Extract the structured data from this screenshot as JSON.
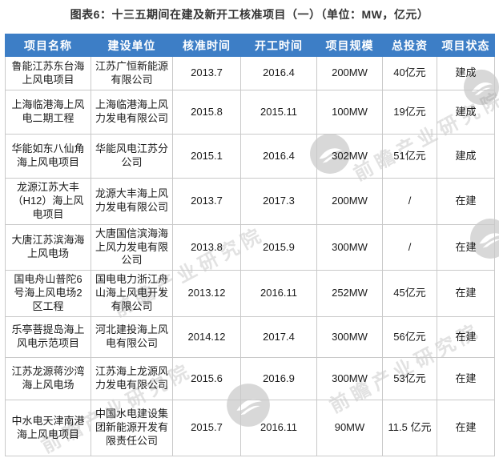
{
  "title": "图表6：十三五期间在建及新开工核准项目（一）（单位：MW，亿元）",
  "watermark": {
    "text": "前瞻产业研究院",
    "logo": "qianzhan-bird-logo"
  },
  "colors": {
    "header_bg": "#3d7ec6",
    "header_text": "#ffffff",
    "border": "#c9c9c9",
    "title_text": "#333333",
    "watermark_text": "#d9d9d9"
  },
  "chart_data": {
    "type": "table",
    "title": "图表6：十三五期间在建及新开工核准项目（一）（单位：MW，亿元）",
    "columns": [
      "项目名称",
      "建设单位",
      "核准时间",
      "开工时间",
      "项目规模",
      "总投资",
      "项目状态"
    ],
    "rows": [
      [
        "鲁能江苏东台海上风电项目",
        "江苏广恒新能源有限公司",
        "2013.7",
        "2016.4",
        "200MW",
        "40亿元",
        "建成"
      ],
      [
        "上海临港海上风电二期工程",
        "上海临港海上风力发电有限公司",
        "2015.8",
        "2015.11",
        "100MW",
        "19亿元",
        "建成"
      ],
      [
        "华能如东八仙角海上风电项目",
        "华能风电江苏分公司",
        "2015.1",
        "2016.4",
        "302MW",
        "51亿元",
        "建成"
      ],
      [
        "龙源江苏大丰（H12）海上风电项目",
        "龙源大丰海上风力发电有限公司",
        "2013.7",
        "2017.3",
        "200MW",
        "/",
        "在建"
      ],
      [
        "大唐江苏滨海海上风电场",
        "大唐国信滨海海上风力发电有限公司",
        "2013.8",
        "2015.9",
        "300MW",
        "/",
        "在建"
      ],
      [
        "国电舟山普陀6号海上风电场2区工程",
        "国电电力浙江舟山海上风电开发有限公司",
        "2013.12",
        "2016.11",
        "252MW",
        "45亿元",
        "在建"
      ],
      [
        "乐亭菩提岛海上风电示范项目",
        "河北建投海上风电有限公司",
        "2014.12",
        "2017.4",
        "300MW",
        "56亿元",
        "在建"
      ],
      [
        "江苏龙源蒋沙湾海上风电场",
        "江苏海上龙源风力发电有限公司",
        "2015.6",
        "2016.9",
        "300MW",
        "53亿元",
        "在建"
      ],
      [
        "中水电天津南港海上风电项目",
        "中国水电建设集团新能源开发有限责任公司",
        "2015.7",
        "2016.11",
        "90MW",
        "11.5 亿元",
        "在建"
      ]
    ]
  }
}
